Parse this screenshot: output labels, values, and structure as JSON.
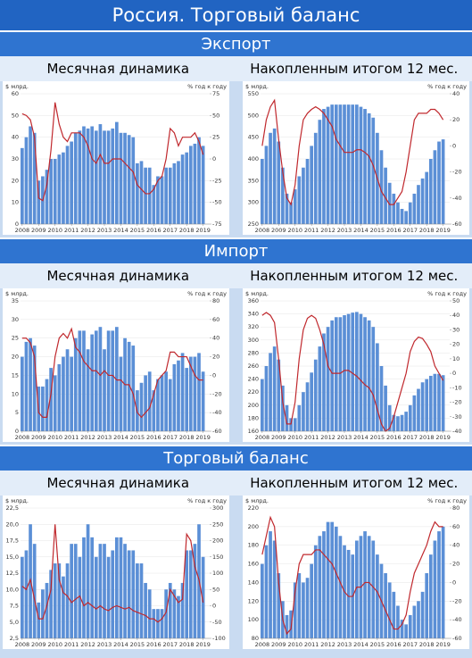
{
  "title": "Россия. Торговый баланс",
  "sections": [
    {
      "title": "Экспорт"
    },
    {
      "title": "Импорт"
    },
    {
      "title": "Торговый баланс"
    }
  ],
  "chart_data": [
    {
      "type": "bar-line",
      "subtitle": "Месячная динамика",
      "ylabel": "$ млрд.",
      "y2label": "% год к году",
      "xlim": [
        2007.9,
        2019.4
      ],
      "xticks": [
        2008,
        2009,
        2010,
        2011,
        2012,
        2013,
        2014,
        2015,
        2016,
        2017,
        2018,
        2019
      ],
      "ylim": [
        0,
        60
      ],
      "yticks": [
        0,
        10,
        20,
        30,
        40,
        50,
        60
      ],
      "y2lim": [
        -75,
        75
      ],
      "y2ticks": [
        -75,
        -50,
        -25,
        0,
        25,
        50,
        75
      ],
      "x": [
        2008,
        2008.25,
        2008.5,
        2008.75,
        2009,
        2009.25,
        2009.5,
        2009.75,
        2010,
        2010.25,
        2010.5,
        2010.75,
        2011,
        2011.25,
        2011.5,
        2011.75,
        2012,
        2012.25,
        2012.5,
        2012.75,
        2013,
        2013.25,
        2013.5,
        2013.75,
        2014,
        2014.25,
        2014.5,
        2014.75,
        2015,
        2015.25,
        2015.5,
        2015.75,
        2016,
        2016.25,
        2016.5,
        2016.75,
        2017,
        2017.25,
        2017.5,
        2017.75,
        2018,
        2018.25,
        2018.5,
        2018.75,
        2019
      ],
      "series": [
        {
          "color": "#5b8fd6",
          "values": [
            35,
            40,
            45,
            42,
            20,
            22,
            25,
            30,
            30,
            32,
            33,
            36,
            38,
            42,
            43,
            45,
            44,
            45,
            43,
            46,
            43,
            43,
            44,
            47,
            42,
            42,
            41,
            40,
            28,
            29,
            26,
            26,
            18,
            22,
            22,
            26,
            26,
            28,
            29,
            32,
            33,
            36,
            37,
            40,
            36
          ]
        },
        {
          "color": "#c0282d",
          "axis": "y2",
          "values": [
            52,
            50,
            45,
            25,
            -45,
            -48,
            -30,
            10,
            65,
            40,
            25,
            20,
            30,
            30,
            30,
            25,
            15,
            0,
            -5,
            5,
            -5,
            -5,
            0,
            0,
            0,
            -5,
            -10,
            -15,
            -30,
            -35,
            -40,
            -40,
            -35,
            -25,
            -20,
            0,
            35,
            30,
            15,
            25,
            25,
            25,
            30,
            20,
            5
          ]
        }
      ]
    },
    {
      "type": "bar-line",
      "subtitle": "Накопленным итогом 12 мес.",
      "ylabel": "$ млрд.",
      "y2label": "% год к году",
      "xlim": [
        2007.9,
        2019.4
      ],
      "xticks": [
        2008,
        2009,
        2010,
        2011,
        2012,
        2013,
        2014,
        2015,
        2016,
        2017,
        2018,
        2019
      ],
      "ylim": [
        250,
        550
      ],
      "yticks": [
        250,
        300,
        350,
        400,
        450,
        500,
        550
      ],
      "y2lim": [
        -60,
        40
      ],
      "y2ticks": [
        -60,
        -40,
        -20,
        0,
        20,
        40
      ],
      "x": [
        2008,
        2008.25,
        2008.5,
        2008.75,
        2009,
        2009.25,
        2009.5,
        2009.75,
        2010,
        2010.25,
        2010.5,
        2010.75,
        2011,
        2011.25,
        2011.5,
        2011.75,
        2012,
        2012.25,
        2012.5,
        2012.75,
        2013,
        2013.25,
        2013.5,
        2013.75,
        2014,
        2014.25,
        2014.5,
        2014.75,
        2015,
        2015.25,
        2015.5,
        2015.75,
        2016,
        2016.25,
        2016.5,
        2016.75,
        2017,
        2017.25,
        2017.5,
        2017.75,
        2018,
        2018.25,
        2018.5,
        2018.75,
        2019
      ],
      "series": [
        {
          "color": "#5b8fd6",
          "values": [
            400,
            430,
            460,
            470,
            440,
            380,
            320,
            300,
            330,
            360,
            380,
            400,
            430,
            460,
            490,
            515,
            520,
            525,
            525,
            525,
            525,
            525,
            525,
            525,
            520,
            515,
            505,
            495,
            460,
            420,
            380,
            345,
            320,
            300,
            285,
            280,
            300,
            320,
            340,
            355,
            370,
            400,
            420,
            440,
            445
          ]
        },
        {
          "color": "#c0282d",
          "axis": "y2",
          "values": [
            0,
            20,
            30,
            35,
            5,
            -20,
            -40,
            -45,
            -30,
            0,
            20,
            25,
            28,
            30,
            28,
            25,
            20,
            15,
            5,
            0,
            -5,
            -5,
            -5,
            -3,
            -3,
            -5,
            -8,
            -15,
            -25,
            -35,
            -40,
            -45,
            -45,
            -40,
            -35,
            -20,
            0,
            20,
            25,
            25,
            25,
            28,
            28,
            25,
            20
          ]
        }
      ]
    },
    {
      "type": "bar-line",
      "subtitle": "Месячная динамика",
      "ylabel": "$ млрд.",
      "y2label": "% год к году",
      "xlim": [
        2007.9,
        2019.4
      ],
      "xticks": [
        2008,
        2009,
        2010,
        2011,
        2012,
        2013,
        2014,
        2015,
        2016,
        2017,
        2018,
        2019
      ],
      "ylim": [
        0,
        35
      ],
      "yticks": [
        0,
        5,
        10,
        15,
        20,
        25,
        30,
        35
      ],
      "y2lim": [
        -60,
        80
      ],
      "y2ticks": [
        -60,
        -40,
        -20,
        0,
        20,
        40,
        60,
        80
      ],
      "x": [
        2008,
        2008.25,
        2008.5,
        2008.75,
        2009,
        2009.25,
        2009.5,
        2009.75,
        2010,
        2010.25,
        2010.5,
        2010.75,
        2011,
        2011.25,
        2011.5,
        2011.75,
        2012,
        2012.25,
        2012.5,
        2012.75,
        2013,
        2013.25,
        2013.5,
        2013.75,
        2014,
        2014.25,
        2014.5,
        2014.75,
        2015,
        2015.25,
        2015.5,
        2015.75,
        2016,
        2016.25,
        2016.5,
        2016.75,
        2017,
        2017.25,
        2017.5,
        2017.75,
        2018,
        2018.25,
        2018.5,
        2018.75,
        2019
      ],
      "series": [
        {
          "color": "#5b8fd6",
          "values": [
            20,
            24,
            25,
            23,
            12,
            12,
            14,
            17,
            15,
            18,
            20,
            22,
            20,
            25,
            27,
            27,
            22,
            26,
            27,
            28,
            22,
            27,
            27,
            28,
            20,
            25,
            24,
            23,
            11,
            13,
            15,
            16,
            11,
            14,
            15,
            16,
            14,
            18,
            19,
            21,
            17,
            20,
            20,
            21,
            16
          ]
        },
        {
          "color": "#c0282d",
          "axis": "y2",
          "values": [
            40,
            40,
            35,
            20,
            -40,
            -45,
            -45,
            -20,
            20,
            40,
            45,
            40,
            50,
            30,
            25,
            15,
            10,
            5,
            5,
            0,
            5,
            0,
            0,
            -5,
            -5,
            -10,
            -10,
            -20,
            -40,
            -45,
            -40,
            -35,
            -20,
            -5,
            0,
            5,
            25,
            25,
            20,
            20,
            20,
            10,
            0,
            -5,
            -5
          ]
        }
      ]
    },
    {
      "type": "bar-line",
      "subtitle": "Накопленным итогом 12 мес.",
      "ylabel": "$ млрд.",
      "y2label": "% год к году",
      "xlim": [
        2007.9,
        2019.4
      ],
      "xticks": [
        2008,
        2009,
        2010,
        2011,
        2012,
        2013,
        2014,
        2015,
        2016,
        2017,
        2018,
        2019
      ],
      "ylim": [
        160,
        360
      ],
      "yticks": [
        160,
        180,
        200,
        220,
        240,
        260,
        280,
        300,
        320,
        340,
        360
      ],
      "y2lim": [
        -40,
        50
      ],
      "y2ticks": [
        -40,
        -30,
        -20,
        -10,
        0,
        10,
        20,
        30,
        40,
        50
      ],
      "x": [
        2008,
        2008.25,
        2008.5,
        2008.75,
        2009,
        2009.25,
        2009.5,
        2009.75,
        2010,
        2010.25,
        2010.5,
        2010.75,
        2011,
        2011.25,
        2011.5,
        2011.75,
        2012,
        2012.25,
        2012.5,
        2012.75,
        2013,
        2013.25,
        2013.5,
        2013.75,
        2014,
        2014.25,
        2014.5,
        2014.75,
        2015,
        2015.25,
        2015.5,
        2015.75,
        2016,
        2016.25,
        2016.5,
        2016.75,
        2017,
        2017.25,
        2017.5,
        2017.75,
        2018,
        2018.25,
        2018.5,
        2018.75,
        2019
      ],
      "series": [
        {
          "color": "#5b8fd6",
          "values": [
            240,
            260,
            280,
            290,
            270,
            230,
            200,
            180,
            180,
            200,
            220,
            235,
            250,
            270,
            290,
            310,
            320,
            330,
            335,
            335,
            338,
            340,
            342,
            343,
            340,
            335,
            330,
            320,
            295,
            260,
            230,
            200,
            185,
            183,
            185,
            190,
            200,
            215,
            225,
            235,
            240,
            245,
            248,
            248,
            246
          ]
        },
        {
          "color": "#c0282d",
          "axis": "y2",
          "values": [
            40,
            42,
            40,
            35,
            10,
            -20,
            -35,
            -35,
            -20,
            10,
            30,
            38,
            40,
            38,
            30,
            20,
            5,
            0,
            0,
            0,
            2,
            2,
            0,
            -2,
            -5,
            -8,
            -10,
            -15,
            -25,
            -35,
            -40,
            -38,
            -30,
            -20,
            -10,
            0,
            15,
            22,
            25,
            24,
            20,
            15,
            5,
            0,
            -5
          ]
        }
      ]
    },
    {
      "type": "bar-line",
      "subtitle": "Месячная динамика",
      "ylabel": "$ млрд.",
      "y2label": "% год к году",
      "xlim": [
        2007.9,
        2019.4
      ],
      "xticks": [
        2008,
        2009,
        2010,
        2011,
        2012,
        2013,
        2014,
        2015,
        2016,
        2017,
        2018,
        2019
      ],
      "ylim": [
        2.5,
        22.5
      ],
      "yticks": [
        {
          "value": 2.5,
          "label": "2,5"
        },
        {
          "value": 5,
          "label": "5,0"
        },
        {
          "value": 7.5,
          "label": "7,5"
        },
        {
          "value": 10,
          "label": "10,0"
        },
        {
          "value": 12.5,
          "label": "12,5"
        },
        {
          "value": 15,
          "label": "15,0"
        },
        {
          "value": 17.5,
          "label": "17,5"
        },
        {
          "value": 20,
          "label": "20,0"
        },
        {
          "value": 22.5,
          "label": "22,5"
        }
      ],
      "y2lim": [
        -100,
        300
      ],
      "y2ticks": [
        -100,
        -50,
        0,
        50,
        100,
        150,
        200,
        250,
        300
      ],
      "x": [
        2008,
        2008.25,
        2008.5,
        2008.75,
        2009,
        2009.25,
        2009.5,
        2009.75,
        2010,
        2010.25,
        2010.5,
        2010.75,
        2011,
        2011.25,
        2011.5,
        2011.75,
        2012,
        2012.25,
        2012.5,
        2012.75,
        2013,
        2013.25,
        2013.5,
        2013.75,
        2014,
        2014.25,
        2014.5,
        2014.75,
        2015,
        2015.25,
        2015.5,
        2015.75,
        2016,
        2016.25,
        2016.5,
        2016.75,
        2017,
        2017.25,
        2017.5,
        2017.75,
        2018,
        2018.25,
        2018.5,
        2018.75,
        2019
      ],
      "series": [
        {
          "color": "#5b8fd6",
          "values": [
            15,
            16,
            20,
            17,
            8,
            10,
            11,
            13,
            14,
            14,
            12,
            14,
            17,
            17,
            15,
            18,
            20,
            18,
            15,
            17,
            17,
            15,
            16,
            18,
            18,
            17,
            16,
            16,
            14,
            14,
            11,
            10,
            7,
            7,
            7,
            10,
            11,
            10,
            9,
            11,
            16,
            16,
            17,
            20,
            15
          ]
        },
        {
          "color": "#c0282d",
          "axis": "y2",
          "values": [
            60,
            50,
            80,
            20,
            -40,
            -40,
            0,
            50,
            250,
            80,
            40,
            30,
            10,
            20,
            30,
            0,
            10,
            0,
            -10,
            0,
            -10,
            -15,
            -5,
            0,
            -5,
            -10,
            -5,
            -15,
            -20,
            -25,
            -30,
            -40,
            -40,
            -50,
            -40,
            -20,
            50,
            30,
            10,
            20,
            220,
            200,
            120,
            80,
            10
          ]
        }
      ]
    },
    {
      "type": "bar-line",
      "subtitle": "Накопленным итогом 12 мес.",
      "ylabel": "$ млрд.",
      "y2label": "% год к году",
      "xlim": [
        2007.9,
        2019.4
      ],
      "xticks": [
        2008,
        2009,
        2010,
        2011,
        2012,
        2013,
        2014,
        2015,
        2016,
        2017,
        2018,
        2019
      ],
      "ylim": [
        80,
        220
      ],
      "yticks": [
        80,
        100,
        120,
        140,
        160,
        180,
        200,
        220
      ],
      "y2lim": [
        -60,
        80
      ],
      "y2ticks": [
        -60,
        -40,
        -20,
        0,
        20,
        40,
        60,
        80
      ],
      "x": [
        2008,
        2008.25,
        2008.5,
        2008.75,
        2009,
        2009.25,
        2009.5,
        2009.75,
        2010,
        2010.25,
        2010.5,
        2010.75,
        2011,
        2011.25,
        2011.5,
        2011.75,
        2012,
        2012.25,
        2012.5,
        2012.75,
        2013,
        2013.25,
        2013.5,
        2013.75,
        2014,
        2014.25,
        2014.5,
        2014.75,
        2015,
        2015.25,
        2015.5,
        2015.75,
        2016,
        2016.25,
        2016.5,
        2016.75,
        2017,
        2017.25,
        2017.5,
        2017.75,
        2018,
        2018.25,
        2018.5,
        2018.75,
        2019
      ],
      "series": [
        {
          "color": "#5b8fd6",
          "values": [
            160,
            180,
            195,
            185,
            150,
            120,
            105,
            110,
            140,
            150,
            140,
            145,
            160,
            180,
            190,
            195,
            205,
            205,
            200,
            190,
            180,
            175,
            170,
            185,
            190,
            195,
            190,
            185,
            170,
            160,
            150,
            140,
            130,
            115,
            100,
            95,
            105,
            115,
            120,
            130,
            150,
            170,
            185,
            195,
            200
          ]
        },
        {
          "color": "#c0282d",
          "axis": "y2",
          "values": [
            30,
            50,
            70,
            60,
            0,
            -40,
            -55,
            -50,
            -10,
            20,
            30,
            30,
            30,
            35,
            35,
            30,
            25,
            20,
            10,
            0,
            -10,
            -15,
            -15,
            -5,
            -5,
            0,
            0,
            -5,
            -10,
            -20,
            -30,
            -40,
            -50,
            -50,
            -45,
            -35,
            -10,
            10,
            20,
            30,
            40,
            55,
            65,
            60,
            60
          ]
        }
      ]
    }
  ]
}
